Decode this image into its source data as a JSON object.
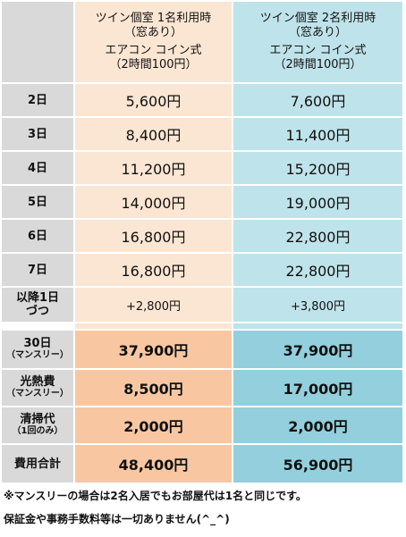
{
  "header": {
    "col1_line1": "ツイン個室 1名利用時",
    "col1_line2": "（窓あり）",
    "col1_line3": "エアコン コイン式",
    "col1_line4": "（2時間100円）",
    "col2_line1": "ツイン個室 2名利用時",
    "col2_line2": "（窓あり）",
    "col2_line3": "エアコン コイン式",
    "col2_line4": "（2時間100円）"
  },
  "daily_rows": [
    {
      "label": "2日",
      "single": "5,600円",
      "double": "7,600円"
    },
    {
      "label": "3日",
      "single": "8,400円",
      "double": "11,400円"
    },
    {
      "label": "4日",
      "single": "11,200円",
      "double": "15,200円"
    },
    {
      "label": "5日",
      "single": "14,000円",
      "double": "19,000円"
    },
    {
      "label": "6日",
      "single": "16,800円",
      "double": "22,800円"
    },
    {
      "label": "7日",
      "single": "16,800円",
      "double": "22,800円"
    }
  ],
  "increment_row": {
    "label_line1": "以降1日",
    "label_line2": "づつ",
    "single": "+2,800円",
    "double": "+3,800円"
  },
  "monthly_rows": [
    {
      "label_line1": "30日",
      "label_line2": "（マンスリー）",
      "single": "37,900円",
      "double": "37,900円"
    },
    {
      "label_line1": "光熱費",
      "label_line2": "（マンスリー）",
      "single": "8,500円",
      "double": "17,000円"
    },
    {
      "label_line1": "清掃代",
      "label_line2": "（1回のみ）",
      "single": "2,000円",
      "double": "2,000円"
    },
    {
      "label_line1": "費用合計",
      "label_line2": "",
      "single": "48,400円",
      "double": "56,900円"
    }
  ],
  "notes": {
    "line1": "※マンスリーの場合は2名入居でもお部屋代は1名と同じです。",
    "line2": "保証金や事務手数料等は一切ありません(^_^)"
  }
}
